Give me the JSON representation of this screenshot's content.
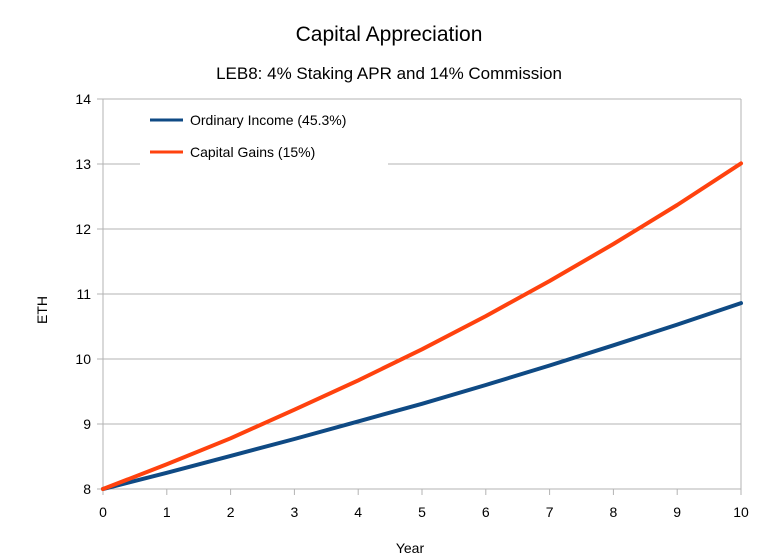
{
  "chart_data": {
    "type": "line",
    "title": "Capital Appreciation",
    "subtitle": "LEB8: 4% Staking APR and 14% Commission",
    "xlabel": "Year",
    "ylabel": "ETH",
    "xlim": [
      0,
      10
    ],
    "ylim": [
      8,
      14
    ],
    "x_ticks": [
      0,
      1,
      2,
      3,
      4,
      5,
      6,
      7,
      8,
      9,
      10
    ],
    "y_ticks": [
      8,
      9,
      10,
      11,
      12,
      13,
      14
    ],
    "grid": true,
    "legend_position": "top-left",
    "x": [
      0,
      1,
      2,
      3,
      4,
      5,
      6,
      7,
      8,
      9,
      10
    ],
    "series": [
      {
        "name": "Ordinary Income (45.3%)",
        "color": "#0f4a84",
        "values": [
          8.0,
          8.25,
          8.51,
          8.77,
          9.04,
          9.31,
          9.6,
          9.9,
          10.21,
          10.53,
          10.86
        ]
      },
      {
        "name": "Capital Gains (15%)",
        "color": "#ff420e",
        "values": [
          8.0,
          8.38,
          8.78,
          9.22,
          9.67,
          10.15,
          10.66,
          11.2,
          11.77,
          12.37,
          13.01
        ]
      }
    ]
  }
}
